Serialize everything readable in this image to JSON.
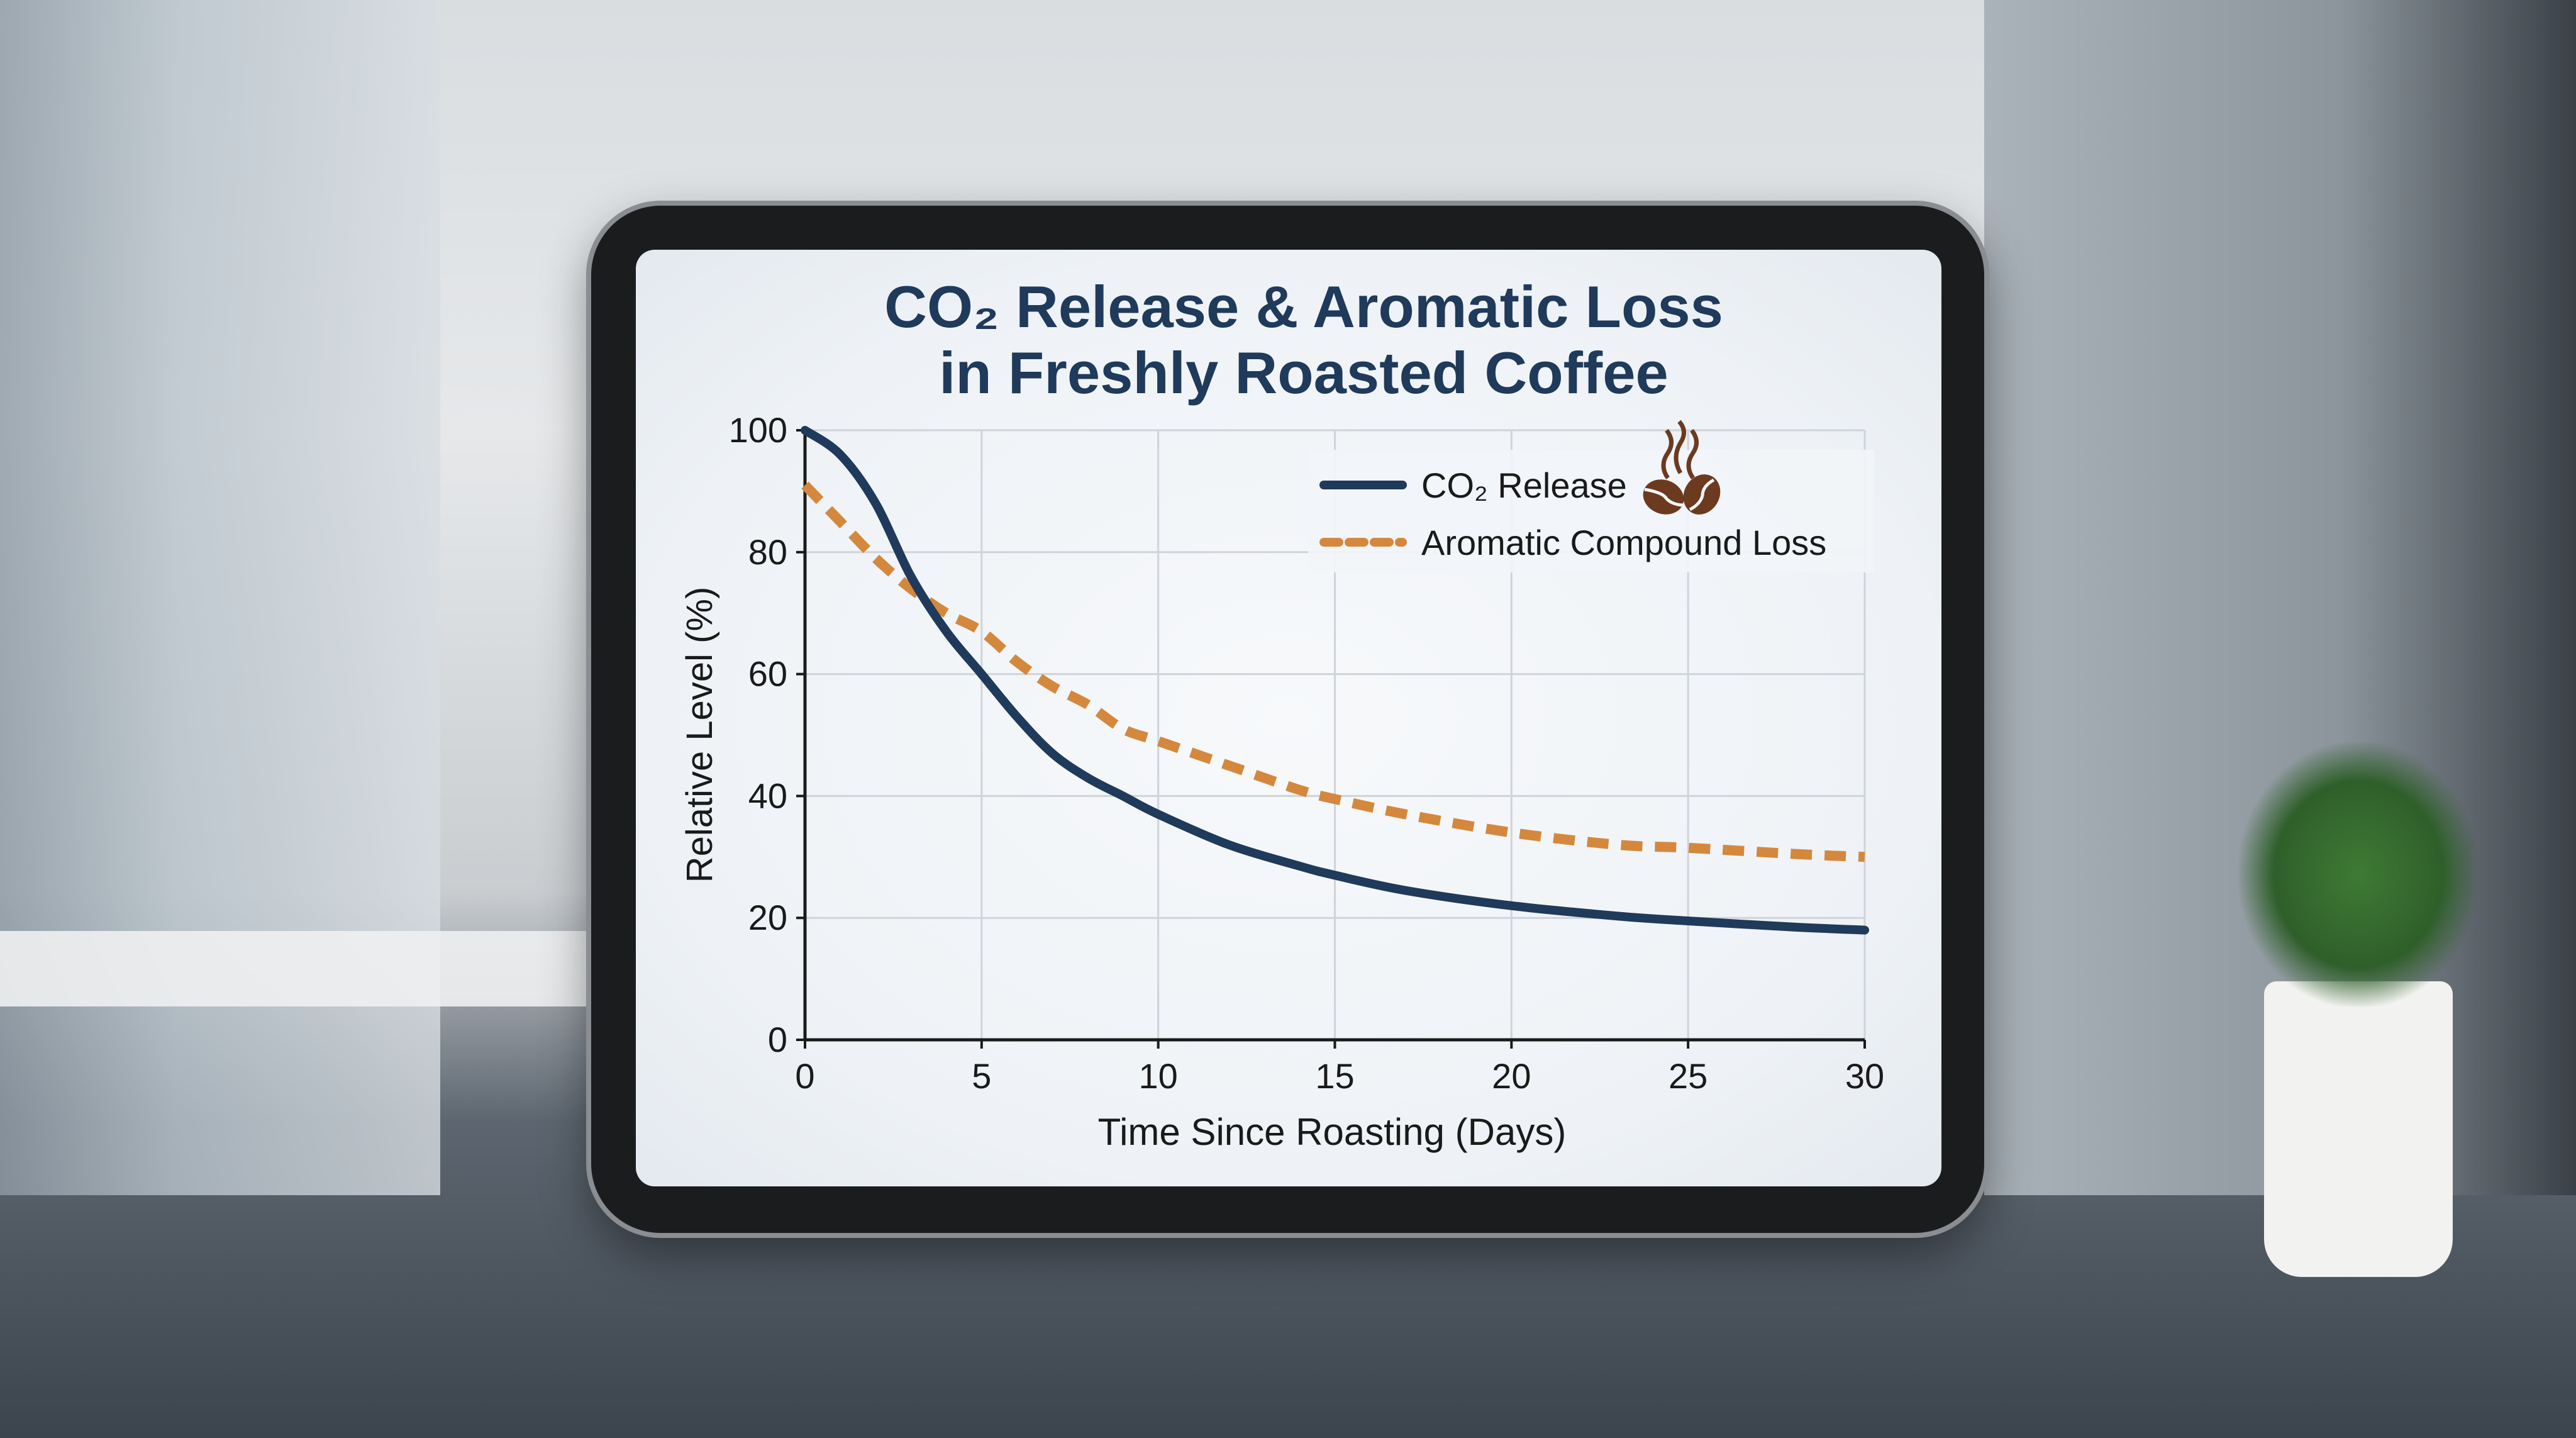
{
  "chart_data": {
    "type": "line",
    "title_line1": "CO₂ Release & Aromatic Loss",
    "title_line2": "in Freshly Roasted Coffee",
    "xlabel": "Time Since Roasting (Days)",
    "ylabel": "Relative Level (%)",
    "xlim": [
      0,
      30
    ],
    "ylim": [
      0,
      100
    ],
    "xticks": [
      0,
      5,
      10,
      15,
      20,
      25,
      30
    ],
    "yticks": [
      0,
      20,
      40,
      60,
      80,
      100
    ],
    "grid": true,
    "legend_position": "top-right",
    "legend_icon": "coffee-beans-steam-icon",
    "series": [
      {
        "name": "CO₂ Release",
        "color": "#1f3a5a",
        "style": "solid",
        "x": [
          0,
          1,
          2,
          3,
          4,
          5,
          6,
          7,
          8,
          9,
          10,
          12,
          14,
          15,
          17,
          20,
          23,
          25,
          28,
          30
        ],
        "y": [
          100,
          96,
          88,
          76,
          67,
          60,
          53,
          47,
          43,
          40,
          37,
          32,
          28.5,
          27,
          24.5,
          22,
          20.3,
          19.5,
          18.5,
          18
        ]
      },
      {
        "name": "Aromatic Compound Loss",
        "color": "#d4883e",
        "style": "dashed",
        "x": [
          0,
          1,
          2,
          3,
          4,
          5,
          6,
          7,
          8,
          9,
          10,
          12,
          14,
          15,
          17,
          20,
          23,
          25,
          28,
          30
        ],
        "y": [
          91,
          85,
          79,
          74,
          70,
          67,
          62,
          58,
          55,
          51,
          49,
          45,
          41,
          39.5,
          37,
          34,
          32,
          31.5,
          30.5,
          30
        ]
      }
    ]
  }
}
